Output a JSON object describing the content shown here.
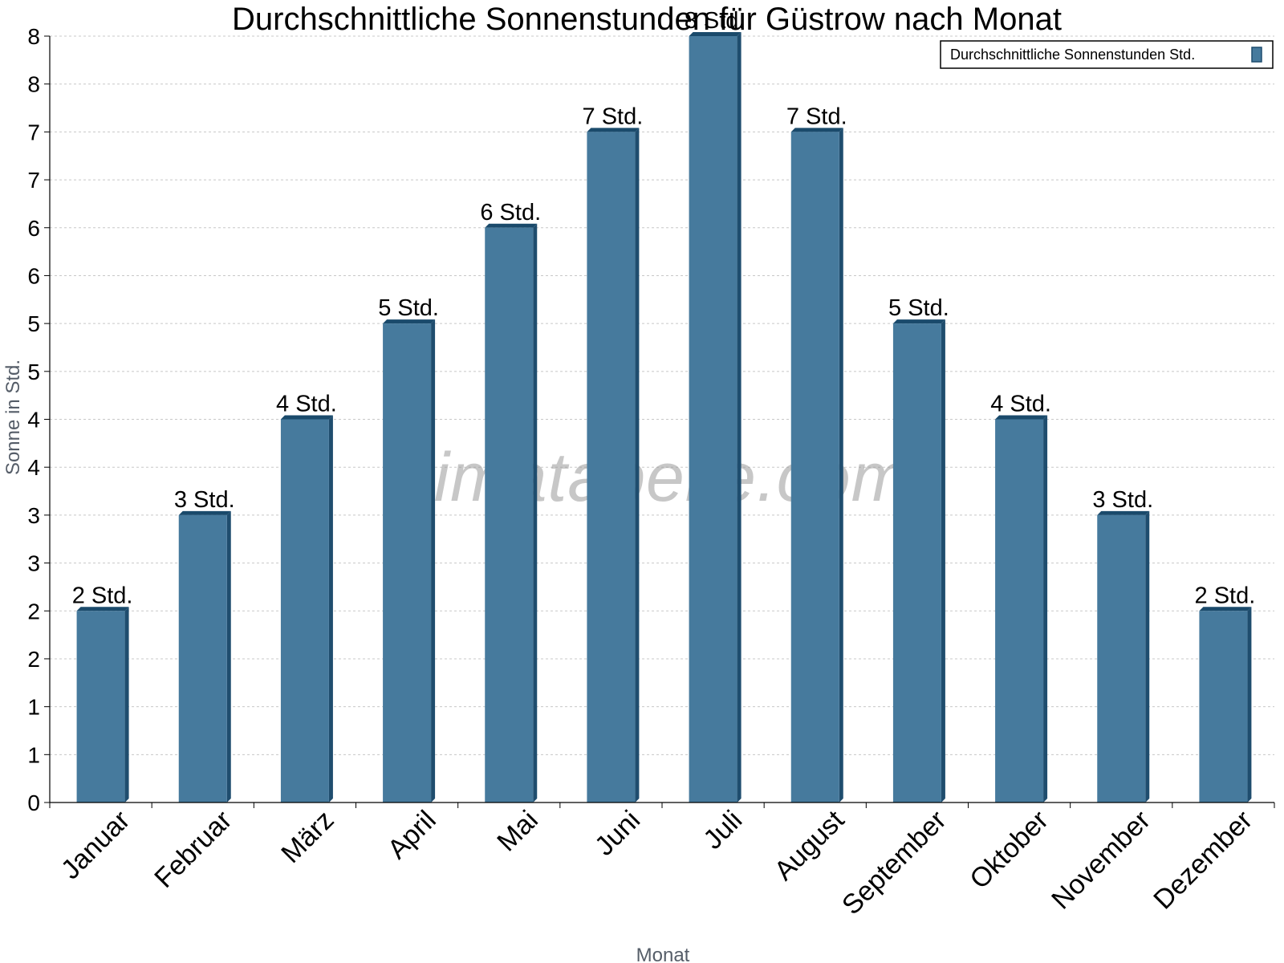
{
  "chart_data": {
    "type": "bar",
    "title": "Durchschnittliche Sonnenstunden für Güstrow nach Monat",
    "xlabel": "Monat",
    "ylabel": "Sonne in Std.",
    "categories": [
      "Januar",
      "Februar",
      "März",
      "April",
      "Mai",
      "Juni",
      "Juli",
      "August",
      "September",
      "Oktober",
      "November",
      "Dezember"
    ],
    "series": [
      {
        "name": "Durchschnittliche Sonnenstunden Std.",
        "values": [
          2,
          3,
          4,
          5,
          6,
          7,
          8,
          7,
          5,
          4,
          3,
          2
        ],
        "labels": [
          "2 Std.",
          "3 Std.",
          "4 Std.",
          "5 Std.",
          "6 Std.",
          "7 Std.",
          "8 Std.",
          "7 Std.",
          "5 Std.",
          "4 Std.",
          "3 Std.",
          "2 Std."
        ]
      }
    ],
    "ylim": [
      0,
      8
    ],
    "yticks": [
      0,
      0.5,
      1,
      1.5,
      2,
      2.5,
      3,
      3.5,
      4,
      4.5,
      5,
      5.5,
      6,
      6.5,
      7,
      7.5,
      8
    ],
    "ytick_labels": [
      "0",
      "1",
      "1",
      "2",
      "2",
      "3",
      "3",
      "4",
      "4",
      "5",
      "5",
      "6",
      "6",
      "7",
      "7",
      "8",
      "8"
    ],
    "grid": true,
    "legend_position": "top-right",
    "colors": {
      "bar": "#467a9d",
      "bar_side": "#1f4d6e",
      "bar_top": "#1a4a6b",
      "grid": "#c8c8c8",
      "axis": "#000000"
    },
    "watermark": "klimatabelle.com"
  }
}
